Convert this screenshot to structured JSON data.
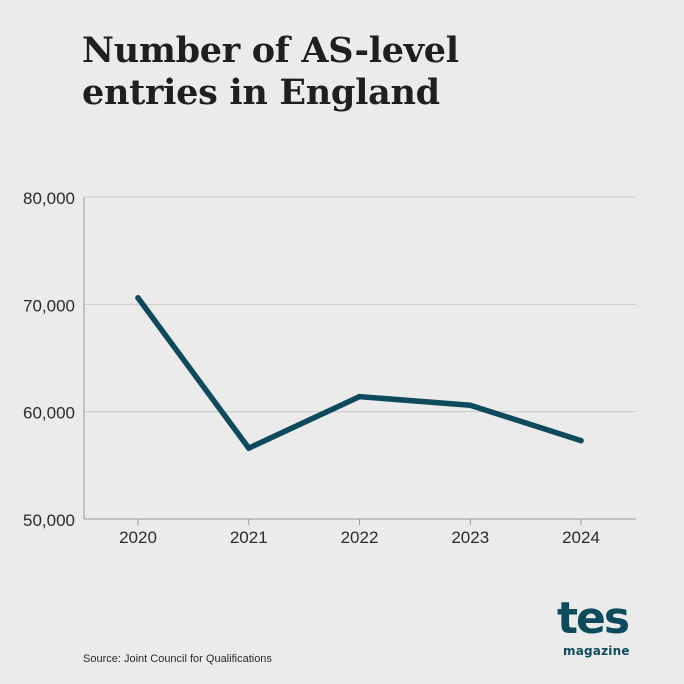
{
  "title_lines": [
    "Number of AS-level",
    "entries in England"
  ],
  "source": "Source: Joint Council for Qualifications",
  "logo": {
    "main": "tes",
    "sub": "magazine"
  },
  "colors": {
    "line": "#0d4b5c",
    "background": "#ebebeb",
    "grid": "#c8c8c8",
    "logo": "#0d4b5c"
  },
  "chart_data": {
    "type": "line",
    "title": "Number of AS-level entries in England",
    "categories": [
      "2020",
      "2021",
      "2022",
      "2023",
      "2024"
    ],
    "values": [
      70600,
      56600,
      61400,
      60600,
      57300
    ],
    "ylim": [
      50000,
      80000
    ],
    "yticks": [
      "50,000",
      "60,000",
      "70,000",
      "80,000"
    ],
    "ytick_values": [
      50000,
      60000,
      70000,
      80000
    ],
    "grid": true,
    "xlabel": "",
    "ylabel": ""
  }
}
